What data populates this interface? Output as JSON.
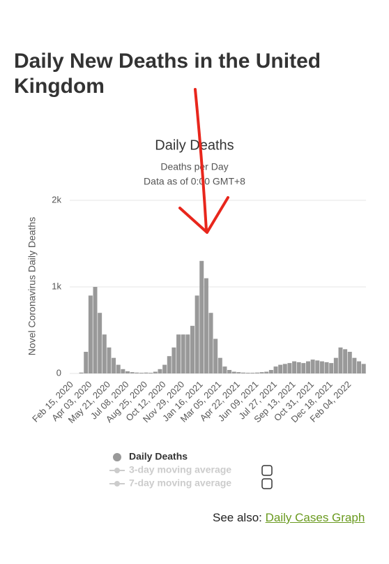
{
  "page": {
    "heading": "Daily New Deaths in the United Kingdom",
    "see_also": {
      "label": "See also:",
      "link": "Daily Cases Graph"
    }
  },
  "chart_data": {
    "type": "bar",
    "title": "Daily Deaths",
    "subtitle": [
      "Deaths per Day",
      "Data as of 0:00 GMT+8"
    ],
    "y_label": "Novel Coronavirus Daily Deaths",
    "categories": [
      "Feb 15, 2020",
      null,
      null,
      null,
      "Apr 03, 2020",
      null,
      null,
      null,
      "May 21, 2020",
      null,
      null,
      null,
      "Jul 08, 2020",
      null,
      null,
      null,
      "Aug 25, 2020",
      null,
      null,
      null,
      "Oct 12, 2020",
      null,
      null,
      null,
      "Nov 29, 2020",
      null,
      null,
      null,
      "Jan 16, 2021",
      null,
      null,
      null,
      "Mar 05, 2021",
      null,
      null,
      null,
      "Apr 22, 2021",
      null,
      null,
      null,
      "Jun 09, 2021",
      null,
      null,
      null,
      "Jul 27, 2021",
      null,
      null,
      null,
      "Sep 13, 2021",
      null,
      null,
      null,
      "Oct 31, 2021",
      null,
      null,
      null,
      "Dec 18, 2021",
      null,
      null,
      null,
      "Feb 04, 2022",
      null,
      null,
      null
    ],
    "series": [
      {
        "name": "Daily Deaths",
        "color": "#999999",
        "values": [
          0,
          0,
          10,
          250,
          900,
          1000,
          700,
          450,
          300,
          180,
          100,
          50,
          25,
          15,
          10,
          8,
          10,
          8,
          20,
          50,
          100,
          200,
          300,
          450,
          450,
          450,
          550,
          900,
          1300,
          1100,
          700,
          400,
          180,
          80,
          40,
          20,
          15,
          10,
          8,
          8,
          10,
          15,
          20,
          40,
          80,
          100,
          110,
          120,
          140,
          130,
          120,
          140,
          160,
          150,
          140,
          130,
          120,
          180,
          300,
          280,
          250,
          180,
          140,
          110
        ]
      }
    ],
    "hidden_series": [
      {
        "name": "3-day moving average",
        "color": "#cccccc"
      },
      {
        "name": "7-day moving average",
        "color": "#cccccc"
      }
    ],
    "ylim": [
      0,
      2000
    ],
    "yticks": [
      0,
      {
        "value": 1000,
        "label": "1k"
      },
      {
        "value": 2000,
        "label": "2k"
      }
    ],
    "grid": true
  }
}
